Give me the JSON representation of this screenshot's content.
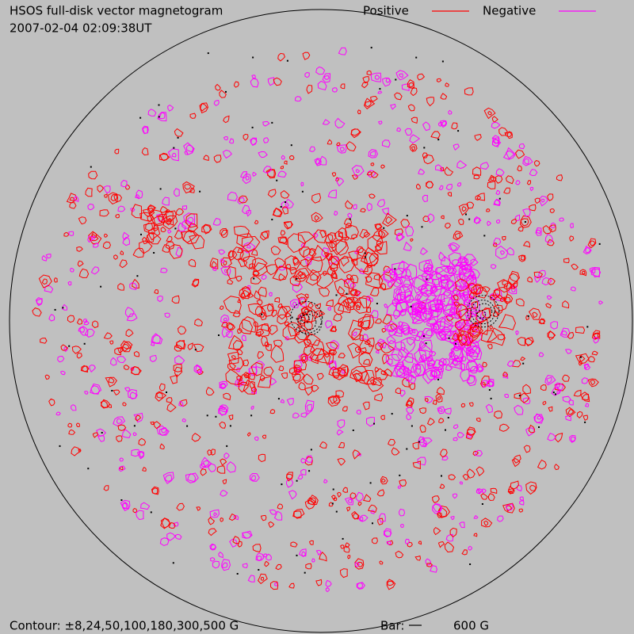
{
  "header": {
    "title": "HSOS full-disk vector magnetogram",
    "timestamp": "2007-02-04 02:09:38UT"
  },
  "legend": {
    "positive": "Positive",
    "negative": "Negative"
  },
  "footer": {
    "contour": "Contour: ±8,24,50,100,180,300,500 G",
    "bar_label": "Bar:",
    "bar_value": "600 G"
  }
}
